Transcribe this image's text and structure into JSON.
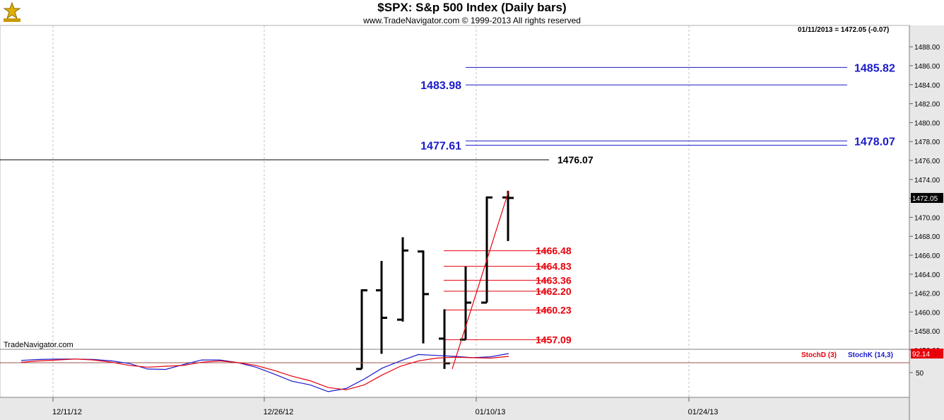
{
  "header": {
    "title": "$SPX:  S&p 500 Index  (Daily bars)",
    "copyright": "www.TradeNavigator.com © 1999-2013 All rights reserved"
  },
  "readout": "01/11/2013 = 1472.05 (-0.07)",
  "brand": "TradeNavigator.com",
  "legend": {
    "stoch_d": "StochD (3)",
    "stoch_k": "StochK (14,3)"
  },
  "colors": {
    "blue_levels": "#1a1acc",
    "red_levels": "#e8000b",
    "black_level": "#000000",
    "stoch_k": "#1a1acc",
    "stoch_d": "#e8000b"
  },
  "chart_data": [
    {
      "type": "ohlc",
      "y_ticks": [
        "1456.00",
        "1458.00",
        "1460.00",
        "1462.00",
        "1464.00",
        "1466.00",
        "1468.00",
        "1470.00",
        "1472.00",
        "1474.00",
        "1476.00",
        "1478.00",
        "1480.00",
        "1482.00",
        "1484.00",
        "1486.00",
        "1488.00"
      ],
      "ylim": [
        1454.6,
        1488.6
      ],
      "x_ticks": [
        "12/11/12",
        "12/26/12",
        "01/10/13",
        "01/24/13"
      ],
      "last_price_label": "1472.05",
      "bars": [
        {
          "high": 1462.4,
          "low": 1454.0,
          "open": 1454.0,
          "close": 1462.3
        },
        {
          "high": 1465.4,
          "low": 1455.6,
          "open": 1462.3,
          "close": 1459.4
        },
        {
          "high": 1467.9,
          "low": 1459.0,
          "open": 1459.2,
          "close": 1466.5
        },
        {
          "high": 1466.5,
          "low": 1456.7,
          "open": 1466.4,
          "close": 1461.9
        },
        {
          "high": 1460.3,
          "low": 1454.0,
          "open": 1457.2,
          "close": 1454.6
        },
        {
          "high": 1464.8,
          "low": 1457.1,
          "open": 1457.1,
          "close": 1461.0
        },
        {
          "high": 1472.2,
          "low": 1461.0,
          "open": 1461.0,
          "close": 1472.1
        },
        {
          "high": 1472.8,
          "low": 1467.5,
          "open": 1472.1,
          "close": 1472.05
        }
      ],
      "trendline": {
        "from": 1454.0,
        "to": 1472.8
      },
      "levels": [
        {
          "value": "1485.82",
          "color": "blue"
        },
        {
          "value": "1483.98",
          "color": "blue"
        },
        {
          "value": "1478.07",
          "color": "blue"
        },
        {
          "value": "1477.61",
          "color": "blue"
        },
        {
          "value": "1476.07",
          "color": "black"
        },
        {
          "value": "1466.48",
          "color": "red"
        },
        {
          "value": "1464.83",
          "color": "red"
        },
        {
          "value": "1463.36",
          "color": "red"
        },
        {
          "value": "1462.20",
          "color": "red"
        },
        {
          "value": "1460.23",
          "color": "red"
        },
        {
          "value": "1457.09",
          "color": "red"
        }
      ]
    },
    {
      "type": "line",
      "y_ticks": [
        "50"
      ],
      "ylim": [
        0,
        100
      ],
      "last_value_label": "92.14",
      "series": [
        {
          "name": "StochK (14,3)",
          "values": [
            77,
            79,
            80,
            80,
            79,
            76,
            70,
            58,
            57,
            68,
            78,
            78,
            72,
            62,
            47,
            31,
            23,
            8,
            15,
            36,
            60,
            76,
            90,
            88,
            86,
            83,
            85,
            92.14
          ]
        },
        {
          "name": "StochD (3)",
          "values": [
            73,
            76,
            78,
            80,
            78,
            73,
            66,
            62,
            64,
            66,
            73,
            76,
            72,
            66,
            55,
            42,
            32,
            17,
            12,
            23,
            45,
            64,
            76,
            82,
            84,
            83,
            82,
            86
          ]
        }
      ]
    }
  ]
}
